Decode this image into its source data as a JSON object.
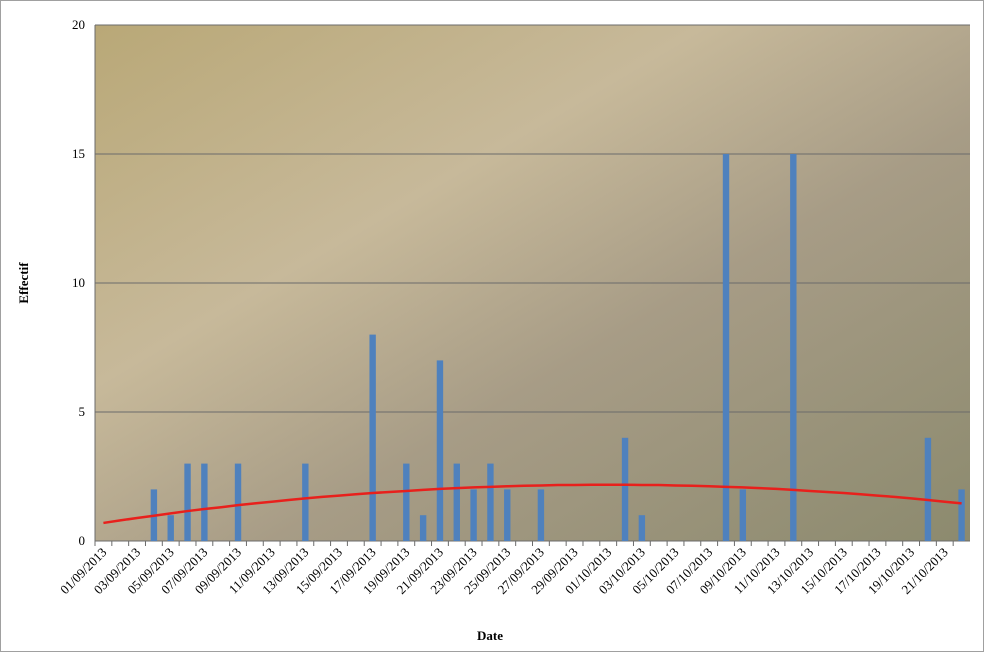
{
  "chart_data": {
    "type": "bar",
    "x_label": "Date",
    "y_label": "Effectif",
    "categories": [
      "01/09/2013",
      null,
      "03/09/2013",
      null,
      "05/09/2013",
      null,
      "07/09/2013",
      null,
      "09/09/2013",
      null,
      "11/09/2013",
      null,
      "13/09/2013",
      null,
      "15/09/2013",
      null,
      "17/09/2013",
      null,
      "19/09/2013",
      null,
      "21/09/2013",
      null,
      "23/09/2013",
      null,
      "25/09/2013",
      null,
      "27/09/2013",
      null,
      "29/09/2013",
      null,
      "01/10/2013",
      null,
      "03/10/2013",
      null,
      "05/10/2013",
      null,
      "07/10/2013",
      null,
      "09/10/2013",
      null,
      "11/10/2013",
      null,
      "13/10/2013",
      null,
      "15/10/2013",
      null,
      "17/10/2013",
      null,
      "19/10/2013",
      null,
      "21/10/2013",
      null
    ],
    "series": [
      {
        "type": "bar",
        "color": "#4f81bd",
        "values": [
          0,
          0,
          0,
          2,
          1,
          3,
          3,
          0,
          3,
          0,
          0,
          0,
          3,
          0,
          0,
          0,
          8,
          0,
          3,
          1,
          7,
          3,
          2,
          3,
          2,
          0,
          2,
          0,
          0,
          0,
          0,
          4,
          1,
          0,
          0,
          0,
          0,
          15,
          2,
          0,
          0,
          15,
          0,
          0,
          0,
          0,
          0,
          0,
          0,
          4,
          0,
          2
        ]
      },
      {
        "type": "line",
        "color": "#e8201c",
        "values": [
          0.7,
          0.8,
          0.89,
          0.98,
          1.07,
          1.16,
          1.24,
          1.31,
          1.39,
          1.46,
          1.52,
          1.59,
          1.65,
          1.71,
          1.76,
          1.81,
          1.86,
          1.9,
          1.94,
          1.98,
          2.02,
          2.05,
          2.08,
          2.1,
          2.12,
          2.14,
          2.15,
          2.17,
          2.17,
          2.18,
          2.18,
          2.18,
          2.17,
          2.17,
          2.15,
          2.14,
          2.12,
          2.1,
          2.08,
          2.05,
          2.02,
          1.98,
          1.94,
          1.9,
          1.86,
          1.81,
          1.76,
          1.71,
          1.65,
          1.59,
          1.52,
          1.46
        ]
      }
    ],
    "ylim": [
      0,
      20
    ],
    "yticks": [
      0,
      5,
      10,
      15,
      20
    ],
    "grid": true
  }
}
